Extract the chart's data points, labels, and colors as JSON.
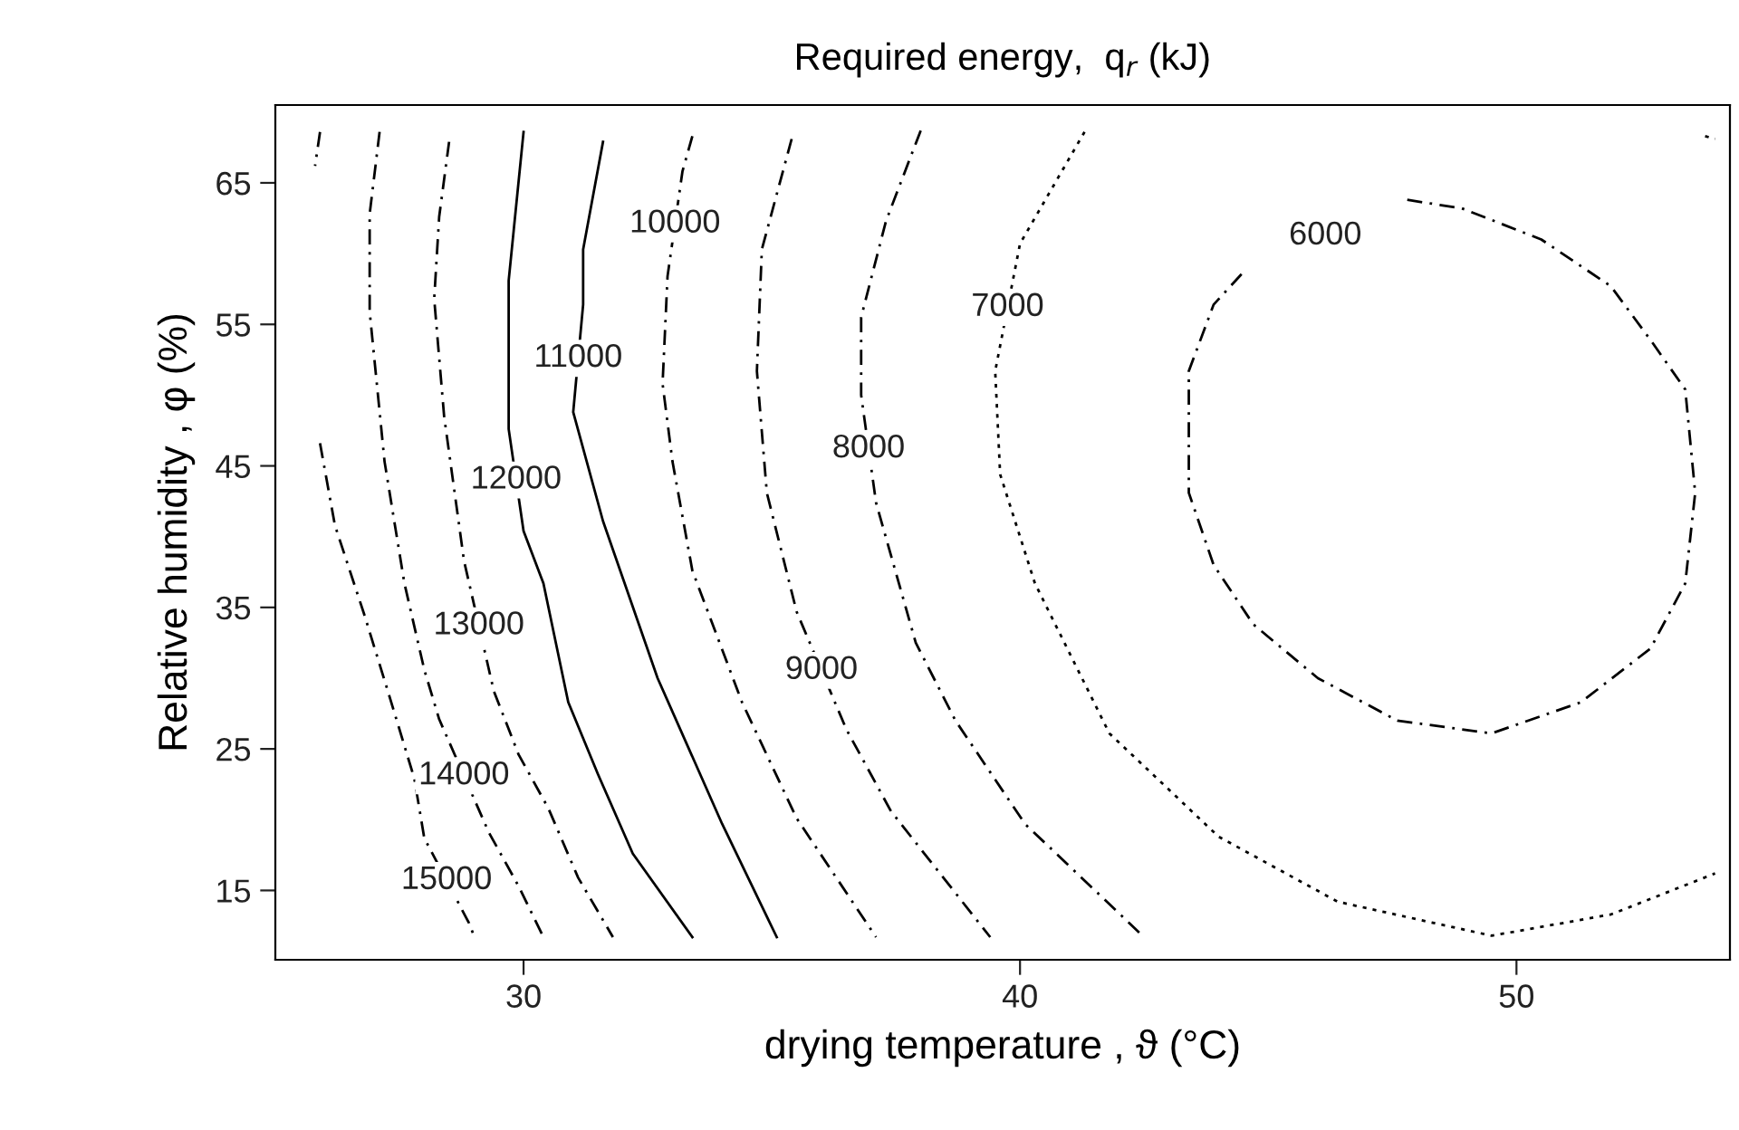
{
  "chart_data": {
    "type": "line",
    "title": "Required energy,  q$_{r}$ (kJ)",
    "xlabel": "drying temperature , ϑ (°C)",
    "ylabel": "Relative humidity , φ (%)",
    "xlim": [
      25,
      54.3
    ],
    "ylim": [
      10.1,
      70.5
    ],
    "xticks": [
      30,
      40,
      50
    ],
    "yticks": [
      15,
      25,
      35,
      45,
      55,
      65
    ],
    "grid": false,
    "marker": "none",
    "series": [
      {
        "color": "#000000",
        "line_style": "dashed",
        "x": [
          25.9,
          25.8,
          null,
          25.9,
          26.2,
          26.8,
          27.3,
          27.8,
          28.0,
          28.9,
          29.0
        ],
        "values": [
          68.6,
          66.2,
          null,
          46.6,
          40.8,
          34.4,
          28.7,
          22.9,
          18.7,
          12.7,
          11.8
        ]
      },
      {
        "color": "#000000",
        "line_style": "dashed",
        "x": [
          27.1,
          26.9,
          26.9,
          27.2,
          27.6,
          28.0,
          28.3,
          29.3,
          29.9,
          30.4
        ],
        "values": [
          68.6,
          62.8,
          55.9,
          45.3,
          36.7,
          30.6,
          27.1,
          19.1,
          15.3,
          11.7
        ]
      },
      {
        "color": "#000000",
        "line_style": "dashed",
        "x": [
          28.5,
          28.3,
          28.2,
          28.4,
          28.8,
          29.4,
          29.9,
          30.5,
          31.1,
          31.8
        ],
        "values": [
          67.9,
          62.6,
          56.8,
          48.5,
          38.3,
          29.1,
          24.6,
          20.8,
          15.9,
          11.7
        ]
      },
      {
        "color": "#000000",
        "line_style": "solid",
        "x": [
          30.0,
          29.7,
          29.7,
          30.0,
          30.4,
          30.9,
          31.5,
          32.2,
          33.4
        ],
        "values": [
          68.6,
          58.1,
          47.6,
          40.4,
          36.7,
          28.3,
          23.2,
          17.6,
          11.7
        ]
      },
      {
        "color": "#000000",
        "line_style": "solid",
        "x": [
          31.6,
          31.2,
          31.2,
          31.0,
          31.6,
          32.7,
          34.0,
          35.1
        ],
        "values": [
          67.9,
          60.3,
          56.4,
          48.8,
          41.1,
          30.0,
          19.7,
          11.7
        ]
      },
      {
        "color": "#000000",
        "line_style": "dashed",
        "x": [
          33.4,
          33.2,
          32.9,
          32.8,
          33.0,
          33.4,
          34.4,
          35.5,
          37.1
        ],
        "values": [
          68.3,
          65.8,
          58.4,
          50.8,
          45.3,
          37.6,
          28.3,
          20.1,
          11.7
        ]
      },
      {
        "color": "#000000",
        "line_style": "dashed",
        "x": [
          35.4,
          34.8,
          34.7,
          34.9,
          35.5,
          36.5,
          37.4,
          39.4
        ],
        "values": [
          68.1,
          60.3,
          51.7,
          43.1,
          34.7,
          26.4,
          20.6,
          11.7
        ]
      },
      {
        "color": "#000000",
        "line_style": "dashed",
        "x": [
          38.0,
          37.3,
          36.8,
          36.8,
          37.1,
          37.9,
          38.7,
          40.1,
          42.5
        ],
        "values": [
          68.7,
          62.3,
          55.5,
          50.0,
          42.4,
          32.5,
          27.0,
          19.7,
          11.7
        ]
      },
      {
        "color": "#000000",
        "line_style": "dotted",
        "x": [
          41.3,
          40.0,
          39.5,
          39.6,
          40.3,
          41.8,
          44.0,
          46.4,
          49.5,
          51.9,
          54.0,
          null,
          53.8,
          54.0
        ],
        "values": [
          68.6,
          60.7,
          51.7,
          44.4,
          36.7,
          26.1,
          18.8,
          14.2,
          11.8,
          13.3,
          16.2,
          null,
          68.3,
          68.1
        ]
      },
      {
        "color": "#000000",
        "line_style": "dashed",
        "x": [
          47.8,
          48.9,
          50.5,
          51.9,
          52.7,
          53.4,
          53.6,
          53.4,
          52.7,
          51.3,
          49.5,
          47.6,
          46.0,
          44.7,
          43.9,
          43.4,
          43.4,
          43.4,
          43.9,
          44.5
        ],
        "values": [
          63.8,
          63.2,
          61.0,
          57.7,
          53.9,
          50.4,
          43.1,
          36.7,
          32.1,
          28.3,
          26.1,
          27.0,
          30.0,
          33.8,
          38.0,
          43.1,
          47.9,
          51.7,
          56.4,
          58.7
        ]
      }
    ],
    "annotations": [
      {
        "text": "15000",
        "x": 28.45,
        "y": 15.7
      },
      {
        "text": "14000",
        "x": 28.8,
        "y": 23.1
      },
      {
        "text": "13000",
        "x": 29.1,
        "y": 33.7
      },
      {
        "text": "12000",
        "x": 29.85,
        "y": 44.0
      },
      {
        "text": "11000",
        "x": 31.1,
        "y": 52.6
      },
      {
        "text": "10000",
        "x": 33.05,
        "y": 62.1
      },
      {
        "text": "9000",
        "x": 36.0,
        "y": 30.55
      },
      {
        "text": "8000",
        "x": 36.95,
        "y": 46.2
      },
      {
        "text": "7000",
        "x": 39.75,
        "y": 56.2
      },
      {
        "text": "6000",
        "x": 46.15,
        "y": 61.25
      }
    ]
  }
}
